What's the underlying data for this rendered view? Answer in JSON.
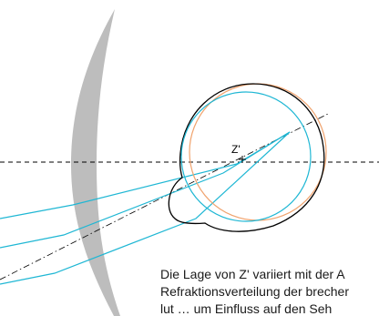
{
  "labels": {
    "point_z": "Z'"
  },
  "caption_lines": [
    "Die Lage von Z' variiert mit der A",
    "Refraktionsverteilung der brecher",
    "lut … um Einfluss auf den Seh"
  ],
  "colors": {
    "lens": "#bdbdbd",
    "ray": "#1fb7d4",
    "orange_circle": "#f0a36e",
    "black": "#000000"
  }
}
